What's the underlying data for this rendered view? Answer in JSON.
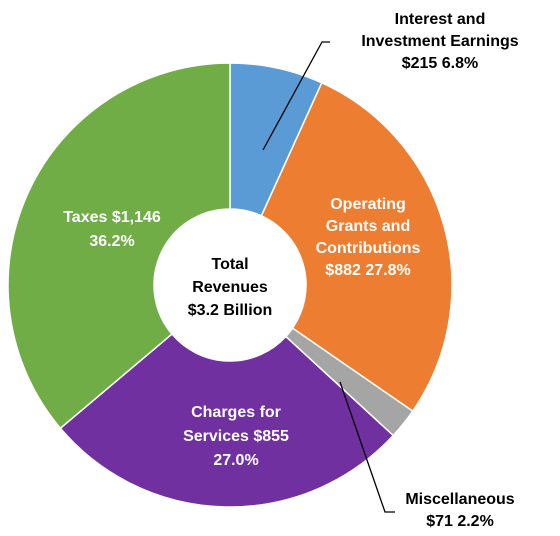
{
  "chart_data": {
    "type": "donut",
    "categories": [
      "Interest and Investment Earnings",
      "Operating Grants and Contributions",
      "Miscellaneous",
      "Charges for Services",
      "Taxes"
    ],
    "values": [
      215,
      882,
      71,
      855,
      1146
    ],
    "colors": [
      "#5b9bd5",
      "#ed7d31",
      "#a5a5a5",
      "#7030a0",
      "#70ad47"
    ],
    "labels": [
      [
        "Interest and",
        "Investment Earnings",
        "$215 6.8%"
      ],
      [
        "Operating",
        "Grants and",
        "Contributions",
        "$882 27.8%"
      ],
      [
        "Miscellaneous",
        "$71 2.2%"
      ],
      [
        "Charges for",
        "Services  $855",
        "27.0%"
      ],
      [
        "Taxes  $1,146",
        "36.2%"
      ]
    ],
    "center_text": [
      "Total",
      "Revenues",
      "$3.2 Billion"
    ]
  }
}
